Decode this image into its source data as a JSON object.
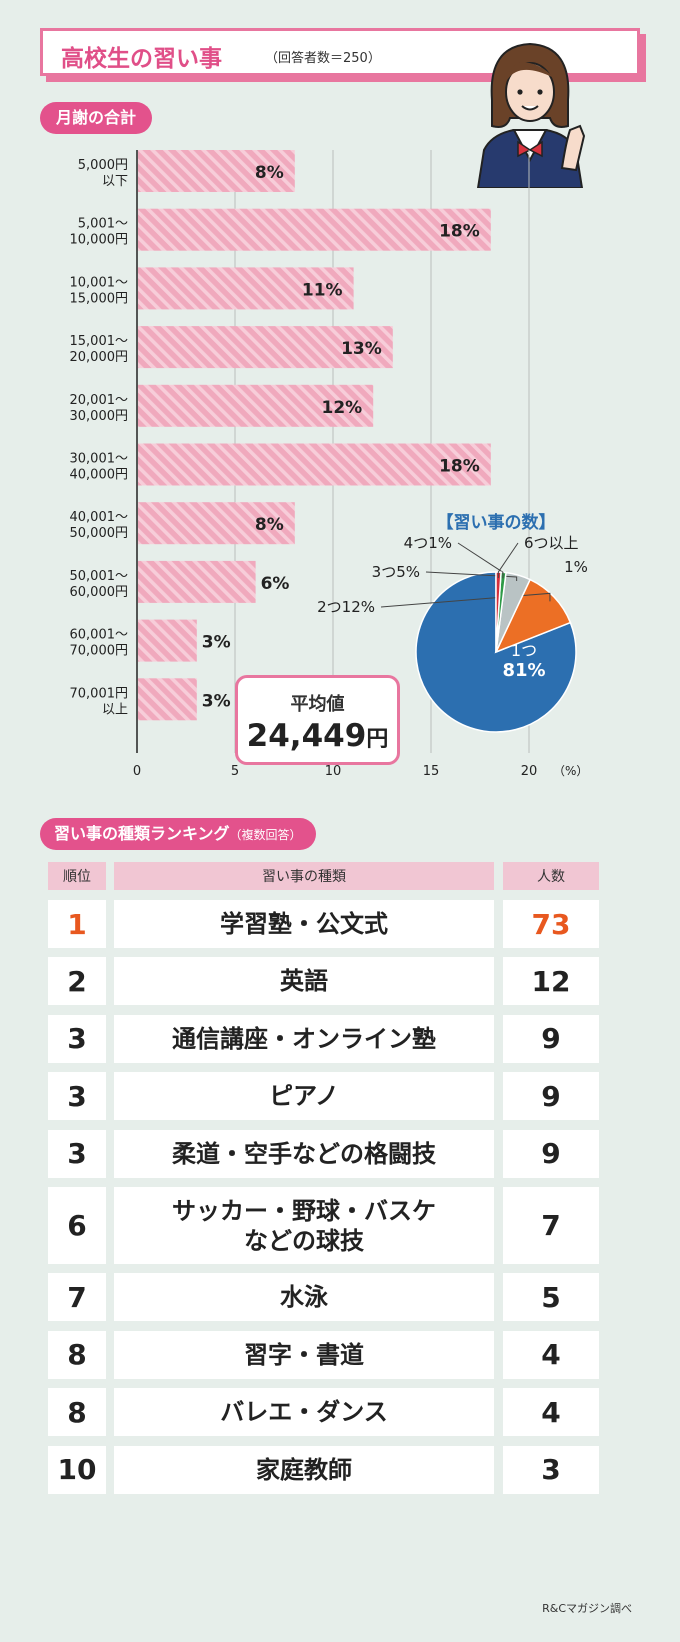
{
  "header": {
    "title": "高校生の習い事",
    "note": "（回答者数＝250）"
  },
  "section1": {
    "label": "月謝の合計"
  },
  "average": {
    "label": "平均値",
    "value": "24,449",
    "unit": "円"
  },
  "section2": {
    "label": "習い事の種類ランキング",
    "sub": "（複数回答）"
  },
  "table": {
    "headers": {
      "rank": "順位",
      "item": "習い事の種類",
      "count": "人数"
    },
    "rows": [
      {
        "rank": "1",
        "item": "学習塾・公文式",
        "count": "73"
      },
      {
        "rank": "2",
        "item": "英語",
        "count": "12"
      },
      {
        "rank": "3",
        "item": "通信講座・オンライン塾",
        "count": "9"
      },
      {
        "rank": "3",
        "item": "ピアノ",
        "count": "9"
      },
      {
        "rank": "3",
        "item": "柔道・空手などの格闘技",
        "count": "9"
      },
      {
        "rank": "6",
        "item": "サッカー・野球・バスケ\nなどの球技",
        "count": "7"
      },
      {
        "rank": "7",
        "item": "水泳",
        "count": "5"
      },
      {
        "rank": "8",
        "item": "習字・書道",
        "count": "4"
      },
      {
        "rank": "8",
        "item": "バレエ・ダンス",
        "count": "4"
      },
      {
        "rank": "10",
        "item": "家庭教師",
        "count": "3"
      }
    ]
  },
  "credit": "R&Cマガジン調べ",
  "colors": {
    "accent": "#e3528c",
    "bar": "#f0a9bd",
    "pie_blue": "#2c6fb0",
    "pie_orange": "#ec6f25",
    "pie_gray": "#b9c3c4",
    "pie_green": "#2e9a47",
    "pie_red": "#d62f3c",
    "rank_highlight": "#e8581f"
  },
  "chart_data": [
    {
      "type": "bar",
      "orientation": "horizontal",
      "categories": [
        "5,000円\n以下",
        "5,001～\n10,000円",
        "10,001～\n15,000円",
        "15,001～\n20,000円",
        "20,001～\n30,000円",
        "30,001～\n40,000円",
        "40,001～\n50,000円",
        "50,001～\n60,000円",
        "60,001～\n70,000円",
        "70,001円\n以上"
      ],
      "values": [
        8,
        18,
        11,
        13,
        12,
        18,
        8,
        6,
        3,
        3
      ],
      "value_labels": [
        "8%",
        "18%",
        "11%",
        "13%",
        "12%",
        "18%",
        "8%",
        "6%",
        "3%",
        "3%"
      ],
      "xticks": [
        "0",
        "5",
        "10",
        "15",
        "20"
      ],
      "xunit": "（%）",
      "xlim": [
        0,
        20
      ],
      "grid": true
    },
    {
      "type": "pie",
      "title": "【習い事の数】",
      "slices": [
        {
          "label": "1つ",
          "pct": "81%",
          "value": 81,
          "color": "#2c6fb0"
        },
        {
          "label": "2つ",
          "pct": "12%",
          "value": 12,
          "color": "#ec6f25"
        },
        {
          "label": "3つ",
          "pct": "5%",
          "value": 5,
          "color": "#b9c3c4"
        },
        {
          "label": "4つ",
          "pct": "1%",
          "value": 1,
          "color": "#2e9a47"
        },
        {
          "label": "6つ以上",
          "pct": "1%",
          "value": 1,
          "color": "#d62f3c"
        }
      ]
    }
  ]
}
